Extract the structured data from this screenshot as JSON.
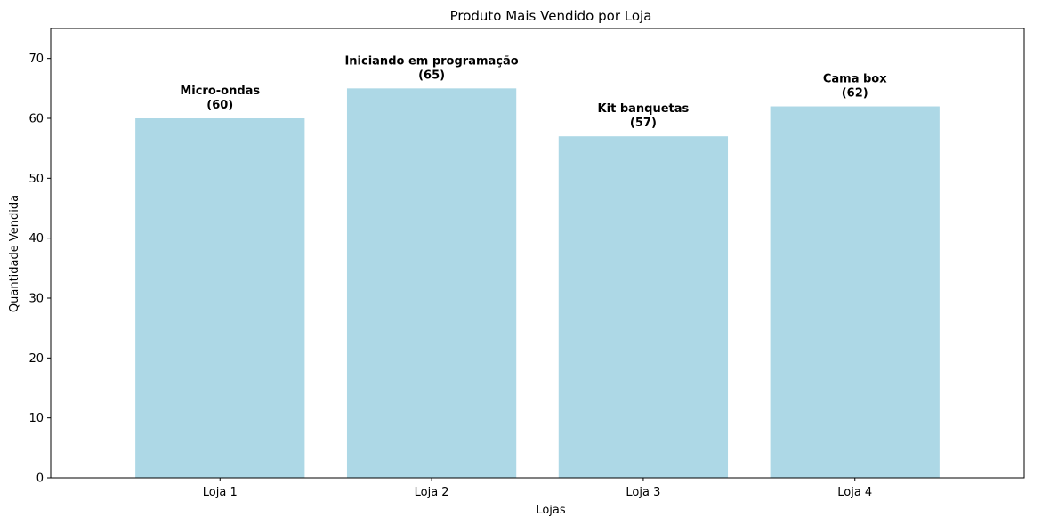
{
  "chart_data": {
    "type": "bar",
    "title": "Produto Mais Vendido por Loja",
    "xlabel": "Lojas",
    "ylabel": "Quantidade Vendida",
    "categories": [
      "Loja 1",
      "Loja 2",
      "Loja 3",
      "Loja 4"
    ],
    "values": [
      60,
      65,
      57,
      62
    ],
    "bar_labels": [
      {
        "product": "Micro-ondas",
        "value_text": "(60)"
      },
      {
        "product": "Iniciando em programação",
        "value_text": "(65)"
      },
      {
        "product": "Kit banquetas",
        "value_text": "(57)"
      },
      {
        "product": "Cama box",
        "value_text": "(62)"
      }
    ],
    "ylim": [
      0,
      75
    ],
    "yticks": [
      0,
      10,
      20,
      30,
      40,
      50,
      60,
      70
    ],
    "grid": false,
    "bar_color": "#add8e6"
  }
}
